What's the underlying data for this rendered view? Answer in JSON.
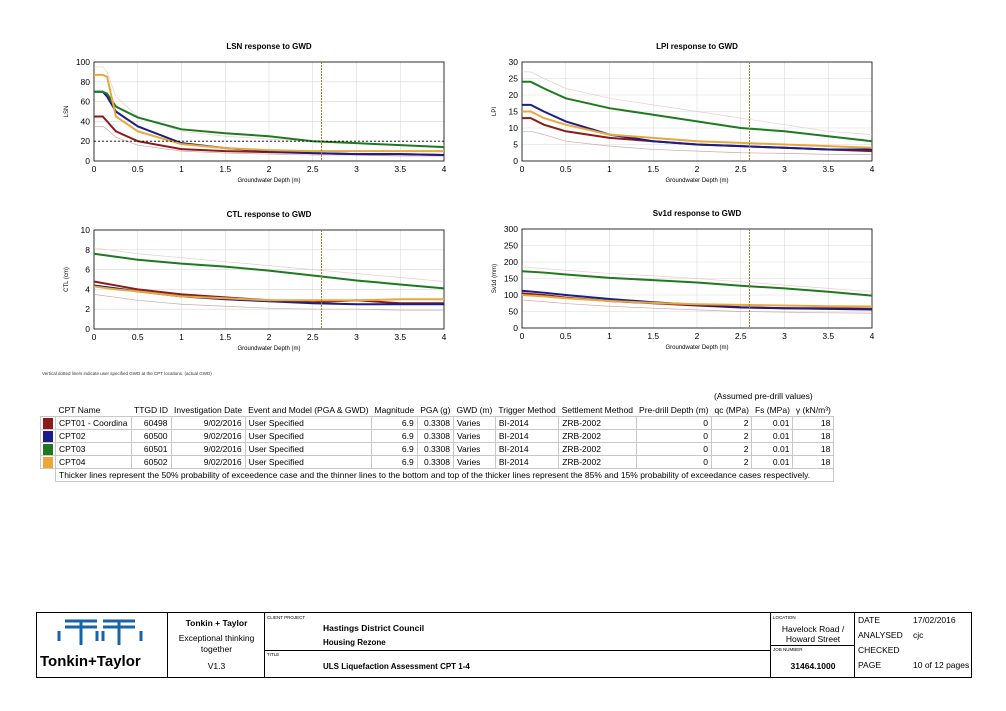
{
  "colors": {
    "cpt01": "#8B1A1A",
    "cpt02": "#1C1C8A",
    "cpt03": "#1F7A1F",
    "cpt04": "#E8A83A",
    "marker": "#9A8030",
    "grid": "#D9D9D9"
  },
  "chart_data": [
    {
      "id": "lsn",
      "type": "line",
      "title": "LSN response to GWD",
      "xlabel": "Groundwater Depth (m)",
      "ylabel": "LSN",
      "xlim": [
        0,
        4
      ],
      "ylim": [
        0,
        100
      ],
      "xticks": [
        0,
        0.5,
        1,
        1.5,
        2,
        2.5,
        3,
        3.5,
        4
      ],
      "xticklabels": [
        "0",
        "0.5",
        "1",
        "1.5",
        "2",
        "2.5",
        "3",
        "3.5",
        "4"
      ],
      "yticks": [
        0,
        20,
        40,
        60,
        80,
        100
      ],
      "yticklabels": [
        "0",
        "20",
        "40",
        "60",
        "80",
        "100"
      ],
      "gwd_line": 2.6,
      "threshold_line": 20,
      "x": [
        0,
        0.1,
        0.15,
        0.25,
        0.5,
        1,
        1.5,
        2,
        2.5,
        3,
        3.5,
        4
      ],
      "series": [
        {
          "name": "CPT01 - Coordina",
          "values": [
            45,
            45,
            40,
            30,
            20,
            12,
            10,
            9,
            8,
            7,
            7,
            6
          ]
        },
        {
          "name": "CPT02",
          "values": [
            70,
            70,
            65,
            50,
            35,
            18,
            13,
            10,
            8,
            7,
            7,
            6
          ]
        },
        {
          "name": "CPT03",
          "values": [
            70,
            70,
            68,
            55,
            44,
            32,
            28,
            25,
            20,
            18,
            16,
            14
          ]
        },
        {
          "name": "CPT04",
          "values": [
            87,
            87,
            85,
            45,
            30,
            17,
            13,
            11,
            10,
            10,
            10,
            10
          ]
        }
      ],
      "lower": [
        35,
        35,
        32,
        24,
        16,
        10,
        8,
        7,
        6,
        6,
        5,
        5
      ],
      "upper": [
        95,
        95,
        90,
        65,
        45,
        30,
        25,
        22,
        20,
        18,
        16,
        15
      ]
    },
    {
      "id": "lpi",
      "type": "line",
      "title": "LPI response to GWD",
      "xlabel": "Groundwater Depth (m)",
      "ylabel": "LPI",
      "xlim": [
        0,
        4
      ],
      "ylim": [
        0,
        30
      ],
      "xticks": [
        0,
        0.5,
        1,
        1.5,
        2,
        2.5,
        3,
        3.5,
        4
      ],
      "xticklabels": [
        "0",
        "0.5",
        "1",
        "1.5",
        "2",
        "2.5",
        "3",
        "3.5",
        "4"
      ],
      "yticks": [
        0,
        5,
        10,
        15,
        20,
        25,
        30
      ],
      "yticklabels": [
        "0",
        "5",
        "10",
        "15",
        "20",
        "25",
        "30"
      ],
      "gwd_line": 2.6,
      "x": [
        0,
        0.1,
        0.25,
        0.5,
        1,
        1.5,
        2,
        2.5,
        3,
        3.5,
        4
      ],
      "series": [
        {
          "name": "CPT01 - Coordina",
          "values": [
            13,
            13,
            11,
            9,
            7,
            6,
            5,
            4.5,
            4,
            3.5,
            3
          ]
        },
        {
          "name": "CPT02",
          "values": [
            17,
            17,
            15,
            12,
            8,
            6,
            5,
            4.5,
            4,
            3.5,
            3.5
          ]
        },
        {
          "name": "CPT03",
          "values": [
            24,
            24,
            22,
            19,
            16,
            14,
            12,
            10,
            9,
            7.5,
            6
          ]
        },
        {
          "name": "CPT04",
          "values": [
            15,
            15,
            13,
            11,
            8,
            7,
            6,
            5.5,
            5,
            4.5,
            4
          ]
        }
      ],
      "lower": [
        9,
        9,
        8,
        6,
        4.5,
        3.5,
        3,
        2.5,
        2.3,
        2,
        2
      ],
      "upper": [
        27,
        27,
        25,
        22,
        19,
        17,
        15,
        13,
        11,
        9,
        8
      ]
    },
    {
      "id": "ctl",
      "type": "line",
      "title": "CTL response to GWD",
      "xlabel": "Groundwater Depth (m)",
      "ylabel": "CTL (cm)",
      "xlim": [
        0,
        4
      ],
      "ylim": [
        0,
        10
      ],
      "xticks": [
        0,
        0.5,
        1,
        1.5,
        2,
        2.5,
        3,
        3.5,
        4
      ],
      "xticklabels": [
        "0",
        "0.5",
        "1",
        "1.5",
        "2",
        "2.5",
        "3",
        "3.5",
        "4"
      ],
      "yticks": [
        0,
        2,
        4,
        6,
        8,
        10
      ],
      "yticklabels": [
        "0",
        "2",
        "4",
        "6",
        "8",
        "10"
      ],
      "gwd_line": 2.6,
      "x": [
        0,
        0.25,
        0.5,
        1,
        1.5,
        2,
        2.5,
        3,
        3.5,
        4
      ],
      "series": [
        {
          "name": "CPT01 - Coordina",
          "values": [
            4.8,
            4.4,
            4,
            3.5,
            3.2,
            2.9,
            2.7,
            2.9,
            2.6,
            2.6
          ]
        },
        {
          "name": "CPT02",
          "values": [
            4.4,
            4.1,
            3.8,
            3.3,
            3,
            2.8,
            2.6,
            2.5,
            2.5,
            2.5
          ]
        },
        {
          "name": "CPT03",
          "values": [
            7.6,
            7.3,
            7,
            6.6,
            6.3,
            5.9,
            5.4,
            4.9,
            4.5,
            4.1
          ]
        },
        {
          "name": "CPT04",
          "values": [
            4.3,
            4,
            3.8,
            3.3,
            3.1,
            2.9,
            2.9,
            2.9,
            3,
            3
          ]
        }
      ],
      "lower": [
        3.5,
        3.2,
        2.9,
        2.5,
        2.3,
        2.1,
        2,
        2,
        1.9,
        1.9
      ],
      "upper": [
        8.2,
        7.9,
        7.6,
        7.2,
        6.8,
        6.4,
        6,
        5.6,
        5.2,
        4.8
      ]
    },
    {
      "id": "sv1d",
      "type": "line",
      "title": "Sv1d response to GWD",
      "xlabel": "Groundwater Depth (m)",
      "ylabel": "Sv1d (mm)",
      "xlim": [
        0,
        4
      ],
      "ylim": [
        0,
        300
      ],
      "xticks": [
        0,
        0.5,
        1,
        1.5,
        2,
        2.5,
        3,
        3.5,
        4
      ],
      "xticklabels": [
        "0",
        "0.5",
        "1",
        "1.5",
        "2",
        "2.5",
        "3",
        "3.5",
        "4"
      ],
      "yticks": [
        0,
        50,
        100,
        150,
        200,
        250,
        300
      ],
      "yticklabels": [
        "0",
        "50",
        "100",
        "150",
        "200",
        "250",
        "300"
      ],
      "gwd_line": 2.6,
      "x": [
        0,
        0.25,
        0.5,
        1,
        1.5,
        2,
        2.5,
        3,
        3.5,
        4
      ],
      "series": [
        {
          "name": "CPT01 - Coordina",
          "values": [
            105,
            100,
            92,
            82,
            75,
            68,
            62,
            60,
            60,
            58
          ]
        },
        {
          "name": "CPT02",
          "values": [
            113,
            107,
            100,
            88,
            78,
            70,
            63,
            60,
            58,
            56
          ]
        },
        {
          "name": "CPT03",
          "values": [
            172,
            168,
            162,
            152,
            145,
            138,
            128,
            120,
            110,
            98
          ]
        },
        {
          "name": "CPT04",
          "values": [
            100,
            96,
            90,
            82,
            76,
            72,
            70,
            68,
            66,
            65
          ]
        }
      ],
      "lower": [
        85,
        80,
        74,
        66,
        60,
        55,
        50,
        48,
        46,
        45
      ],
      "upper": [
        185,
        180,
        175,
        165,
        158,
        150,
        140,
        130,
        120,
        110
      ]
    }
  ],
  "note": "Vertical dotted line/s indicate user specified GWD at the CPT locations. (actual GWD)",
  "table": {
    "assumed_caption": "(Assumed pre-drill values)",
    "headers": [
      "CPT Name",
      "TTGD ID",
      "Investigation Date",
      "Event and Model (PGA & GWD)",
      "Magnitude",
      "PGA (g)",
      "GWD (m)",
      "Trigger Method",
      "Settlement Method",
      "Pre-drill Depth (m)",
      "qc (MPa)",
      "Fs (MPa)",
      "γ (kN/m³)"
    ],
    "rows": [
      {
        "swatch": "#8B1A1A",
        "cells": [
          "CPT01 - Coordina",
          "60498",
          "9/02/2016",
          "User Specified",
          "6.9",
          "0.3308",
          "Varies",
          "BI-2014",
          "ZRB-2002",
          "0",
          "2",
          "0.01",
          "18"
        ]
      },
      {
        "swatch": "#1C1C8A",
        "cells": [
          "CPT02",
          "60500",
          "9/02/2016",
          "User Specified",
          "6.9",
          "0.3308",
          "Varies",
          "BI-2014",
          "ZRB-2002",
          "0",
          "2",
          "0.01",
          "18"
        ]
      },
      {
        "swatch": "#1F7A1F",
        "cells": [
          "CPT03",
          "60501",
          "9/02/2016",
          "User Specified",
          "6.9",
          "0.3308",
          "Varies",
          "BI-2014",
          "ZRB-2002",
          "0",
          "2",
          "0.01",
          "18"
        ]
      },
      {
        "swatch": "#E8A83A",
        "cells": [
          "CPT04",
          "60502",
          "9/02/2016",
          "User Specified",
          "6.9",
          "0.3308",
          "Varies",
          "BI-2014",
          "ZRB-2002",
          "0",
          "2",
          "0.01",
          "18"
        ]
      }
    ],
    "footnote": "Thicker lines represent the 50% probability of exceedence case and the thinner lines to the bottom and top of the thicker lines represent the 85% and 15% probability of exceedance cases respectively."
  },
  "titleblock": {
    "logo_text": "Tonkin+Taylor",
    "company": "Tonkin + Taylor",
    "slogan_1": "Exceptional thinking",
    "slogan_2": "together",
    "version": "V1.3",
    "client_label": "CLIENT PROJECT",
    "client": "Hastings District Council",
    "project": "Housing Rezone",
    "title_label": "TITLE",
    "title": "ULS Liquefaction Assessment CPT 1-4",
    "location_label": "LOCATION",
    "location_1": "Havelock Road /",
    "location_2": "Howard Street",
    "job_label": "JOB NUMBER",
    "job_number": "31464.1000",
    "date_label": "DATE",
    "date": "17/02/2016",
    "analysed_label": "ANALYSED",
    "analysed": "cjc",
    "checked_label": "CHECKED",
    "checked": "",
    "page_label": "PAGE",
    "page": "10 of 12 pages"
  }
}
